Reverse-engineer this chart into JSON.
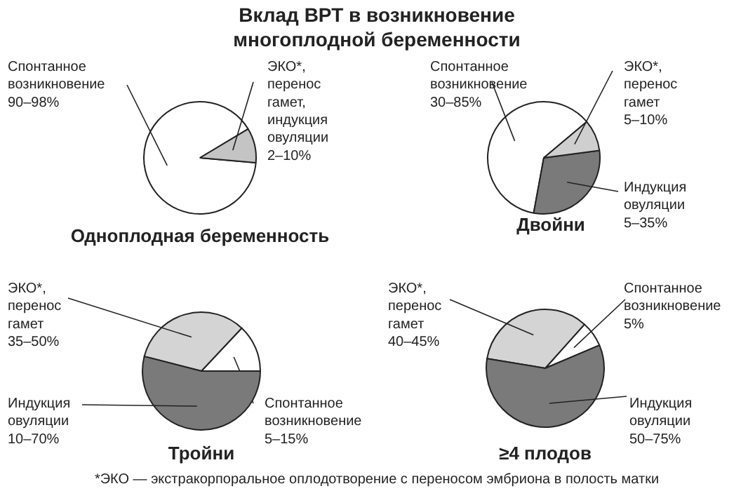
{
  "chart_data": [
    {
      "type": "pie",
      "title": "Вклад ВРТ в возникновение многоплодной беременности",
      "subtitle": "Одноплодная беременность",
      "categories": [
        "Спонтанное возникновение 90–98%",
        "ЭКО*, перенос гамет, индукция овуляции 2–10%"
      ],
      "values": [
        90,
        10
      ],
      "colors": [
        "#ffffff",
        "#c4c4c4"
      ]
    },
    {
      "type": "pie",
      "title": "Двойни",
      "categories": [
        "Спонтанное возникновение 30–85%",
        "Индукция овуляции 5–35%",
        "ЭКО*, перенос гамет 5–10%"
      ],
      "values": [
        61,
        30,
        9
      ],
      "colors": [
        "#ffffff",
        "#7a7a7a",
        "#cfcfcf"
      ]
    },
    {
      "type": "pie",
      "title": "Тройни",
      "categories": [
        "Спонтанное возникновение 5–15%",
        "ЭКО*, перенос гамет 35–50%",
        "Индукция овуляции 10–70%"
      ],
      "values": [
        13,
        33,
        54
      ],
      "colors": [
        "#ffffff",
        "#d4d4d4",
        "#7a7a7a"
      ]
    },
    {
      "type": "pie",
      "title": "≥4 плодов",
      "categories": [
        "Спонтанное возникновение 5%",
        "ЭКО*, перенос гамет 40–45%",
        "Индукция овуляции 50–75%"
      ],
      "values": [
        7,
        34,
        59
      ],
      "colors": [
        "#ffffff",
        "#d4d4d4",
        "#7a7a7a"
      ],
      "annotations": [
        "*ЭКО — экстракорпоральное оплодотворение с переносом эмбриона в полость матки"
      ]
    }
  ]
}
